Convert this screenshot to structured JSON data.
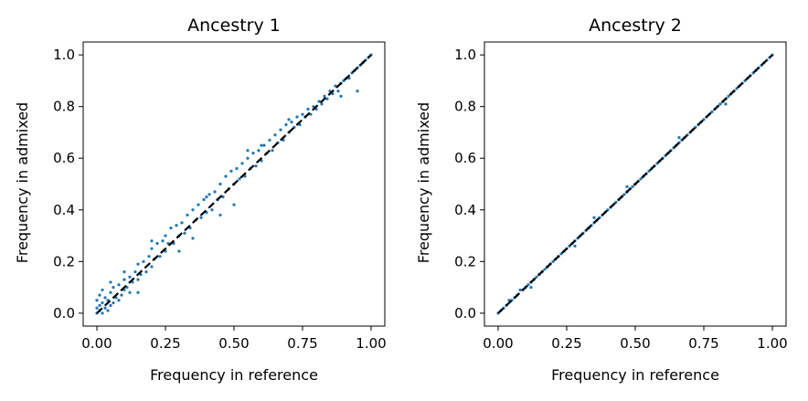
{
  "chart_data": [
    {
      "type": "scatter",
      "title": "Ancestry 1",
      "xlabel": "Frequency in reference",
      "ylabel": "Frequency in admixed",
      "xlim": [
        -0.05,
        1.05
      ],
      "ylim": [
        -0.05,
        1.05
      ],
      "xticks": [
        "0.00",
        "0.25",
        "0.50",
        "0.75",
        "1.00"
      ],
      "yticks": [
        "0.0",
        "0.2",
        "0.4",
        "0.6",
        "0.8",
        "1.0"
      ],
      "reference_line": {
        "from": [
          0,
          0
        ],
        "to": [
          1,
          1
        ],
        "style": "dashed",
        "color": "#000000"
      },
      "point_color": "#1f77b4",
      "points": [
        [
          0.0,
          0.0
        ],
        [
          0.0,
          0.02
        ],
        [
          0.0,
          0.05
        ],
        [
          0.01,
          0.01
        ],
        [
          0.01,
          0.03
        ],
        [
          0.01,
          0.07
        ],
        [
          0.02,
          0.0
        ],
        [
          0.02,
          0.04
        ],
        [
          0.02,
          0.09
        ],
        [
          0.03,
          0.02
        ],
        [
          0.03,
          0.06
        ],
        [
          0.04,
          0.01
        ],
        [
          0.04,
          0.05
        ],
        [
          0.05,
          0.03
        ],
        [
          0.05,
          0.08
        ],
        [
          0.06,
          0.04
        ],
        [
          0.06,
          0.1
        ],
        [
          0.07,
          0.06
        ],
        [
          0.08,
          0.05
        ],
        [
          0.08,
          0.11
        ],
        [
          0.09,
          0.07
        ],
        [
          0.1,
          0.09
        ],
        [
          0.1,
          0.13
        ],
        [
          0.11,
          0.1
        ],
        [
          0.12,
          0.08
        ],
        [
          0.12,
          0.14
        ],
        [
          0.13,
          0.12
        ],
        [
          0.14,
          0.16
        ],
        [
          0.15,
          0.13
        ],
        [
          0.15,
          0.19
        ],
        [
          0.16,
          0.15
        ],
        [
          0.17,
          0.2
        ],
        [
          0.18,
          0.16
        ],
        [
          0.19,
          0.22
        ],
        [
          0.2,
          0.18
        ],
        [
          0.2,
          0.25
        ],
        [
          0.21,
          0.21
        ],
        [
          0.22,
          0.27
        ],
        [
          0.23,
          0.22
        ],
        [
          0.24,
          0.28
        ],
        [
          0.25,
          0.24
        ],
        [
          0.25,
          0.3
        ],
        [
          0.26,
          0.27
        ],
        [
          0.27,
          0.33
        ],
        [
          0.28,
          0.27
        ],
        [
          0.29,
          0.34
        ],
        [
          0.3,
          0.3
        ],
        [
          0.31,
          0.35
        ],
        [
          0.32,
          0.31
        ],
        [
          0.33,
          0.38
        ],
        [
          0.34,
          0.33
        ],
        [
          0.35,
          0.4
        ],
        [
          0.36,
          0.36
        ],
        [
          0.37,
          0.42
        ],
        [
          0.38,
          0.37
        ],
        [
          0.39,
          0.44
        ],
        [
          0.4,
          0.39
        ],
        [
          0.41,
          0.46
        ],
        [
          0.42,
          0.4
        ],
        [
          0.43,
          0.47
        ],
        [
          0.44,
          0.44
        ],
        [
          0.45,
          0.5
        ],
        [
          0.46,
          0.45
        ],
        [
          0.47,
          0.53
        ],
        [
          0.48,
          0.48
        ],
        [
          0.49,
          0.55
        ],
        [
          0.5,
          0.5
        ],
        [
          0.51,
          0.56
        ],
        [
          0.52,
          0.52
        ],
        [
          0.53,
          0.58
        ],
        [
          0.54,
          0.53
        ],
        [
          0.55,
          0.6
        ],
        [
          0.56,
          0.56
        ],
        [
          0.57,
          0.62
        ],
        [
          0.58,
          0.57
        ],
        [
          0.59,
          0.63
        ],
        [
          0.6,
          0.59
        ],
        [
          0.61,
          0.65
        ],
        [
          0.62,
          0.62
        ],
        [
          0.63,
          0.67
        ],
        [
          0.64,
          0.63
        ],
        [
          0.65,
          0.69
        ],
        [
          0.66,
          0.66
        ],
        [
          0.67,
          0.71
        ],
        [
          0.68,
          0.67
        ],
        [
          0.69,
          0.73
        ],
        [
          0.7,
          0.7
        ],
        [
          0.71,
          0.74
        ],
        [
          0.72,
          0.72
        ],
        [
          0.73,
          0.76
        ],
        [
          0.74,
          0.73
        ],
        [
          0.75,
          0.77
        ],
        [
          0.76,
          0.76
        ],
        [
          0.77,
          0.79
        ],
        [
          0.78,
          0.77
        ],
        [
          0.79,
          0.8
        ],
        [
          0.8,
          0.79
        ],
        [
          0.81,
          0.82
        ],
        [
          0.82,
          0.81
        ],
        [
          0.83,
          0.84
        ],
        [
          0.84,
          0.83
        ],
        [
          0.85,
          0.86
        ],
        [
          0.86,
          0.85
        ],
        [
          0.87,
          0.88
        ],
        [
          0.88,
          0.86
        ],
        [
          0.89,
          0.89
        ],
        [
          0.9,
          0.9
        ],
        [
          0.91,
          0.91
        ],
        [
          0.92,
          0.91
        ],
        [
          0.93,
          0.93
        ],
        [
          0.94,
          0.94
        ],
        [
          0.95,
          0.95
        ],
        [
          0.96,
          0.96
        ],
        [
          0.97,
          0.97
        ],
        [
          0.98,
          0.98
        ],
        [
          0.99,
          0.99
        ],
        [
          1.0,
          1.0
        ],
        [
          0.95,
          0.86
        ],
        [
          0.89,
          0.84
        ],
        [
          0.5,
          0.42
        ],
        [
          0.3,
          0.24
        ],
        [
          0.2,
          0.28
        ],
        [
          0.1,
          0.16
        ],
        [
          0.05,
          0.12
        ],
        [
          0.15,
          0.08
        ],
        [
          0.35,
          0.29
        ],
        [
          0.45,
          0.38
        ],
        [
          0.6,
          0.65
        ],
        [
          0.7,
          0.75
        ],
        [
          0.55,
          0.63
        ],
        [
          0.4,
          0.45
        ]
      ]
    },
    {
      "type": "scatter",
      "title": "Ancestry 2",
      "xlabel": "Frequency in reference",
      "ylabel": "Frequency in admixed",
      "xlim": [
        -0.05,
        1.05
      ],
      "ylim": [
        -0.05,
        1.05
      ],
      "xticks": [
        "0.00",
        "0.25",
        "0.50",
        "0.75",
        "1.00"
      ],
      "yticks": [
        "0.0",
        "0.2",
        "0.4",
        "0.6",
        "0.8",
        "1.0"
      ],
      "reference_line": {
        "from": [
          0,
          0
        ],
        "to": [
          1,
          1
        ],
        "style": "dashed",
        "color": "#000000"
      },
      "point_color": "#1f77b4",
      "points": [
        [
          0.0,
          0.0
        ],
        [
          0.01,
          0.01
        ],
        [
          0.02,
          0.02
        ],
        [
          0.03,
          0.03
        ],
        [
          0.04,
          0.05
        ],
        [
          0.05,
          0.05
        ],
        [
          0.06,
          0.06
        ],
        [
          0.07,
          0.07
        ],
        [
          0.08,
          0.09
        ],
        [
          0.09,
          0.09
        ],
        [
          0.1,
          0.1
        ],
        [
          0.11,
          0.11
        ],
        [
          0.12,
          0.12
        ],
        [
          0.13,
          0.13
        ],
        [
          0.14,
          0.14
        ],
        [
          0.15,
          0.15
        ],
        [
          0.16,
          0.16
        ],
        [
          0.17,
          0.17
        ],
        [
          0.18,
          0.18
        ],
        [
          0.19,
          0.19
        ],
        [
          0.2,
          0.2
        ],
        [
          0.21,
          0.21
        ],
        [
          0.22,
          0.22
        ],
        [
          0.23,
          0.23
        ],
        [
          0.24,
          0.24
        ],
        [
          0.25,
          0.25
        ],
        [
          0.26,
          0.26
        ],
        [
          0.27,
          0.27
        ],
        [
          0.28,
          0.28
        ],
        [
          0.29,
          0.29
        ],
        [
          0.3,
          0.3
        ],
        [
          0.31,
          0.31
        ],
        [
          0.32,
          0.32
        ],
        [
          0.33,
          0.33
        ],
        [
          0.34,
          0.34
        ],
        [
          0.35,
          0.35
        ],
        [
          0.36,
          0.36
        ],
        [
          0.37,
          0.37
        ],
        [
          0.38,
          0.38
        ],
        [
          0.39,
          0.39
        ],
        [
          0.4,
          0.4
        ],
        [
          0.41,
          0.41
        ],
        [
          0.42,
          0.42
        ],
        [
          0.43,
          0.43
        ],
        [
          0.44,
          0.44
        ],
        [
          0.45,
          0.45
        ],
        [
          0.46,
          0.46
        ],
        [
          0.47,
          0.47
        ],
        [
          0.48,
          0.48
        ],
        [
          0.49,
          0.49
        ],
        [
          0.5,
          0.5
        ],
        [
          0.51,
          0.51
        ],
        [
          0.52,
          0.52
        ],
        [
          0.53,
          0.53
        ],
        [
          0.54,
          0.54
        ],
        [
          0.55,
          0.55
        ],
        [
          0.56,
          0.56
        ],
        [
          0.57,
          0.57
        ],
        [
          0.58,
          0.58
        ],
        [
          0.59,
          0.59
        ],
        [
          0.6,
          0.6
        ],
        [
          0.61,
          0.61
        ],
        [
          0.62,
          0.62
        ],
        [
          0.63,
          0.63
        ],
        [
          0.64,
          0.64
        ],
        [
          0.65,
          0.65
        ],
        [
          0.66,
          0.66
        ],
        [
          0.67,
          0.67
        ],
        [
          0.68,
          0.68
        ],
        [
          0.69,
          0.69
        ],
        [
          0.7,
          0.7
        ],
        [
          0.71,
          0.71
        ],
        [
          0.72,
          0.72
        ],
        [
          0.73,
          0.73
        ],
        [
          0.74,
          0.74
        ],
        [
          0.75,
          0.75
        ],
        [
          0.76,
          0.76
        ],
        [
          0.77,
          0.77
        ],
        [
          0.78,
          0.78
        ],
        [
          0.79,
          0.79
        ],
        [
          0.8,
          0.8
        ],
        [
          0.81,
          0.81
        ],
        [
          0.82,
          0.82
        ],
        [
          0.83,
          0.83
        ],
        [
          0.84,
          0.84
        ],
        [
          0.85,
          0.85
        ],
        [
          0.86,
          0.86
        ],
        [
          0.87,
          0.87
        ],
        [
          0.88,
          0.88
        ],
        [
          0.89,
          0.89
        ],
        [
          0.9,
          0.9
        ],
        [
          0.91,
          0.91
        ],
        [
          0.92,
          0.92
        ],
        [
          0.93,
          0.93
        ],
        [
          0.94,
          0.94
        ],
        [
          0.95,
          0.95
        ],
        [
          0.96,
          0.96
        ],
        [
          0.97,
          0.97
        ],
        [
          0.98,
          0.98
        ],
        [
          0.99,
          0.99
        ],
        [
          1.0,
          1.0
        ],
        [
          0.12,
          0.1
        ],
        [
          0.28,
          0.26
        ],
        [
          0.47,
          0.49
        ],
        [
          0.66,
          0.68
        ],
        [
          0.83,
          0.81
        ],
        [
          0.35,
          0.37
        ]
      ]
    }
  ]
}
